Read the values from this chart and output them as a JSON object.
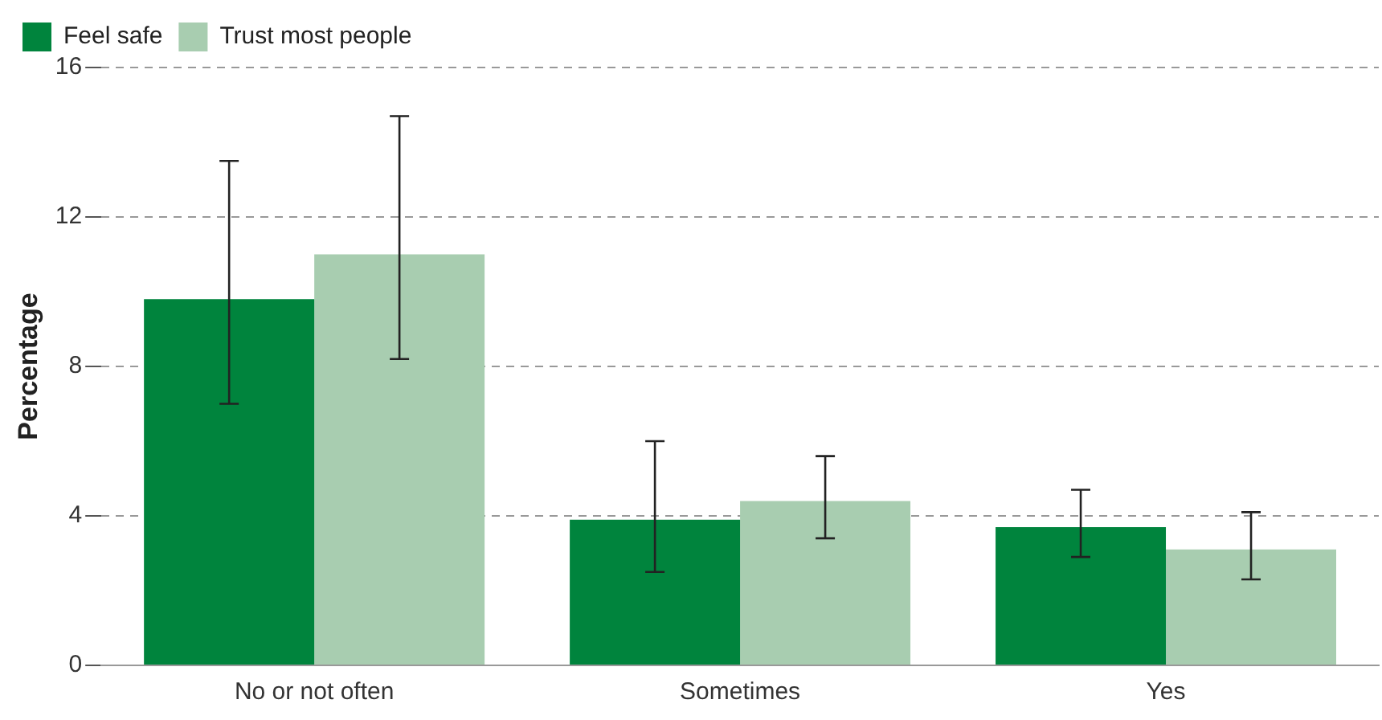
{
  "chart_data": {
    "type": "bar",
    "ylabel": "Percentage",
    "categories": [
      "No or not often",
      "Sometimes",
      "Yes"
    ],
    "series": [
      {
        "name": "Feel safe",
        "color": "#00843d",
        "values": [
          9.8,
          3.9,
          3.7
        ],
        "errors": [
          [
            7.0,
            13.5
          ],
          [
            2.5,
            6.0
          ],
          [
            2.9,
            4.7
          ]
        ]
      },
      {
        "name": "Trust most people",
        "color": "#a8cdb0",
        "values": [
          11.0,
          4.4,
          3.1
        ],
        "errors": [
          [
            8.2,
            14.7
          ],
          [
            3.4,
            5.6
          ],
          [
            2.3,
            4.1
          ]
        ]
      }
    ],
    "ylim": [
      0,
      16
    ],
    "yticks": [
      0,
      4,
      8,
      12,
      16
    ],
    "grid": "y",
    "legend": "top left"
  }
}
